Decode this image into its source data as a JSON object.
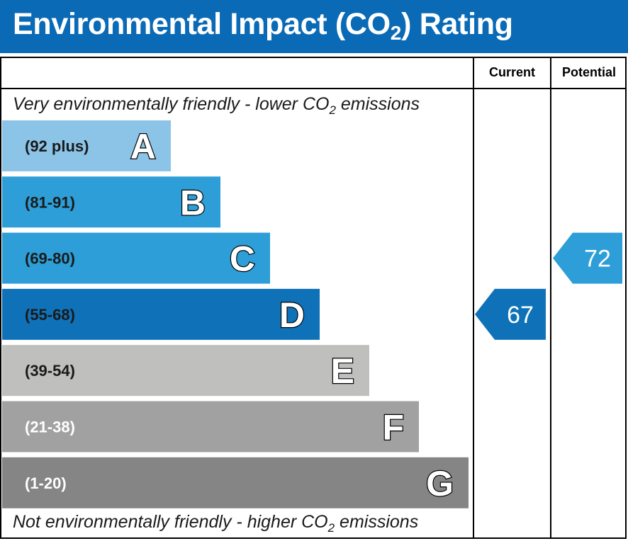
{
  "header": {
    "title_before": "Environmental Impact (CO",
    "title_sub": "2",
    "title_after": ") Rating",
    "background": "#0a6ab6"
  },
  "columns": {
    "current": "Current",
    "potential": "Potential"
  },
  "notes": {
    "top_before": "Very environmentally friendly - lower CO",
    "top_sub": "2",
    "top_after": " emissions",
    "bottom_before": "Not environmentally friendly - higher CO",
    "bottom_sub": "2",
    "bottom_after": " emissions"
  },
  "chart_data": {
    "type": "bar",
    "bands": [
      {
        "letter": "A",
        "range": "(92 plus)",
        "min": 92,
        "max": null,
        "color": "#8cc4e8",
        "text_color": "#1a1a1a"
      },
      {
        "letter": "B",
        "range": "(81-91)",
        "min": 81,
        "max": 91,
        "color": "#2d9ed7",
        "text_color": "#1a1a1a"
      },
      {
        "letter": "C",
        "range": "(69-80)",
        "min": 69,
        "max": 80,
        "color": "#2d9ed7",
        "text_color": "#1a1a1a"
      },
      {
        "letter": "D",
        "range": "(55-68)",
        "min": 55,
        "max": 68,
        "color": "#0f72b8",
        "text_color": "#1a1a1a"
      },
      {
        "letter": "E",
        "range": "(39-54)",
        "min": 39,
        "max": 54,
        "color": "#bfbfbe",
        "text_color": "#1a1a1a"
      },
      {
        "letter": "F",
        "range": "(21-38)",
        "min": 21,
        "max": 38,
        "color": "#a1a1a1",
        "text_color": "#ffffff"
      },
      {
        "letter": "G",
        "range": "(1-20)",
        "min": 1,
        "max": 20,
        "color": "#858585",
        "text_color": "#ffffff"
      }
    ],
    "current": {
      "value": 67,
      "band": "D",
      "color": "#0f72b8"
    },
    "potential": {
      "value": 72,
      "band": "C",
      "color": "#2d9ed7"
    }
  }
}
